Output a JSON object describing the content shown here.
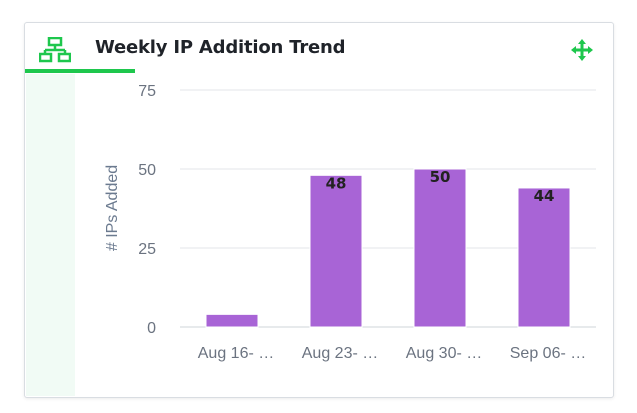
{
  "widget": {
    "title": "Weekly IP Addition Trend",
    "header_icon": "network-icon",
    "move_icon": "move-icon",
    "accent_color": "#1ec74d"
  },
  "chart_data": {
    "type": "bar",
    "title": "Weekly IP Addition Trend",
    "ylabel": "# IPs Added",
    "xlabel": "",
    "categories": [
      "Aug 16- …",
      "Aug 23- …",
      "Aug 30- …",
      "Sep 06- …"
    ],
    "values": [
      4,
      48,
      50,
      44
    ],
    "data_labels": [
      "",
      "48",
      "50",
      "44"
    ],
    "ylim": [
      0,
      75
    ],
    "yticks": [
      0,
      25,
      50,
      75
    ],
    "bar_color": "#a864d6",
    "grid": true,
    "legend": "none"
  }
}
